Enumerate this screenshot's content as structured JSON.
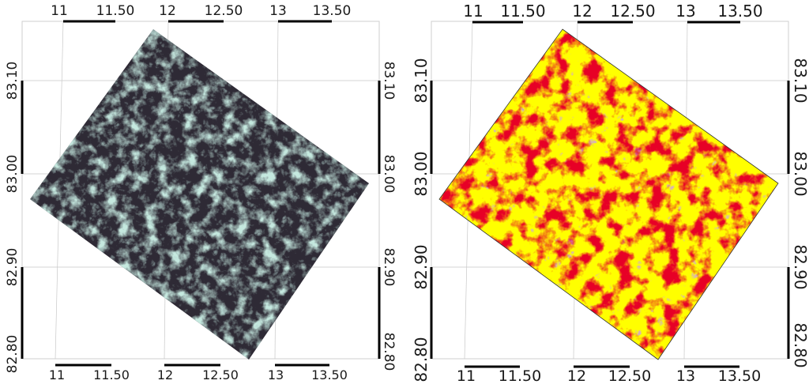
{
  "panels": [
    {
      "name": "sar-image-map",
      "top_ticks": [
        "11",
        "11.50",
        "12",
        "12.50",
        "13",
        "13.50"
      ],
      "bottom_ticks": [
        "11",
        "11.50",
        "12",
        "12.50",
        "13",
        "13.50"
      ],
      "left_ticks": [
        "83.10",
        "83.00",
        "82.90",
        "82.80"
      ],
      "right_ticks": [
        "83.10",
        "83.00",
        "82.90",
        "82.80"
      ]
    },
    {
      "name": "ice-classification-map",
      "top_ticks": [
        "11",
        "11.50",
        "12",
        "12.50",
        "13",
        "13.50"
      ],
      "bottom_ticks": [
        "11",
        "11.50",
        "12",
        "12.50",
        "13",
        "13.50"
      ],
      "left_ticks": [
        "83.10",
        "83.00",
        "82.90",
        "82.80"
      ],
      "right_ticks": [
        "83.10",
        "83.00",
        "82.90",
        "82.80"
      ]
    }
  ],
  "colors": {
    "sar_dark": "#2e2a35",
    "sar_light": "#8fcfbc",
    "class_yellow": "#ffff00",
    "class_red": "#cc0000",
    "class_purple": "#9955dd"
  }
}
